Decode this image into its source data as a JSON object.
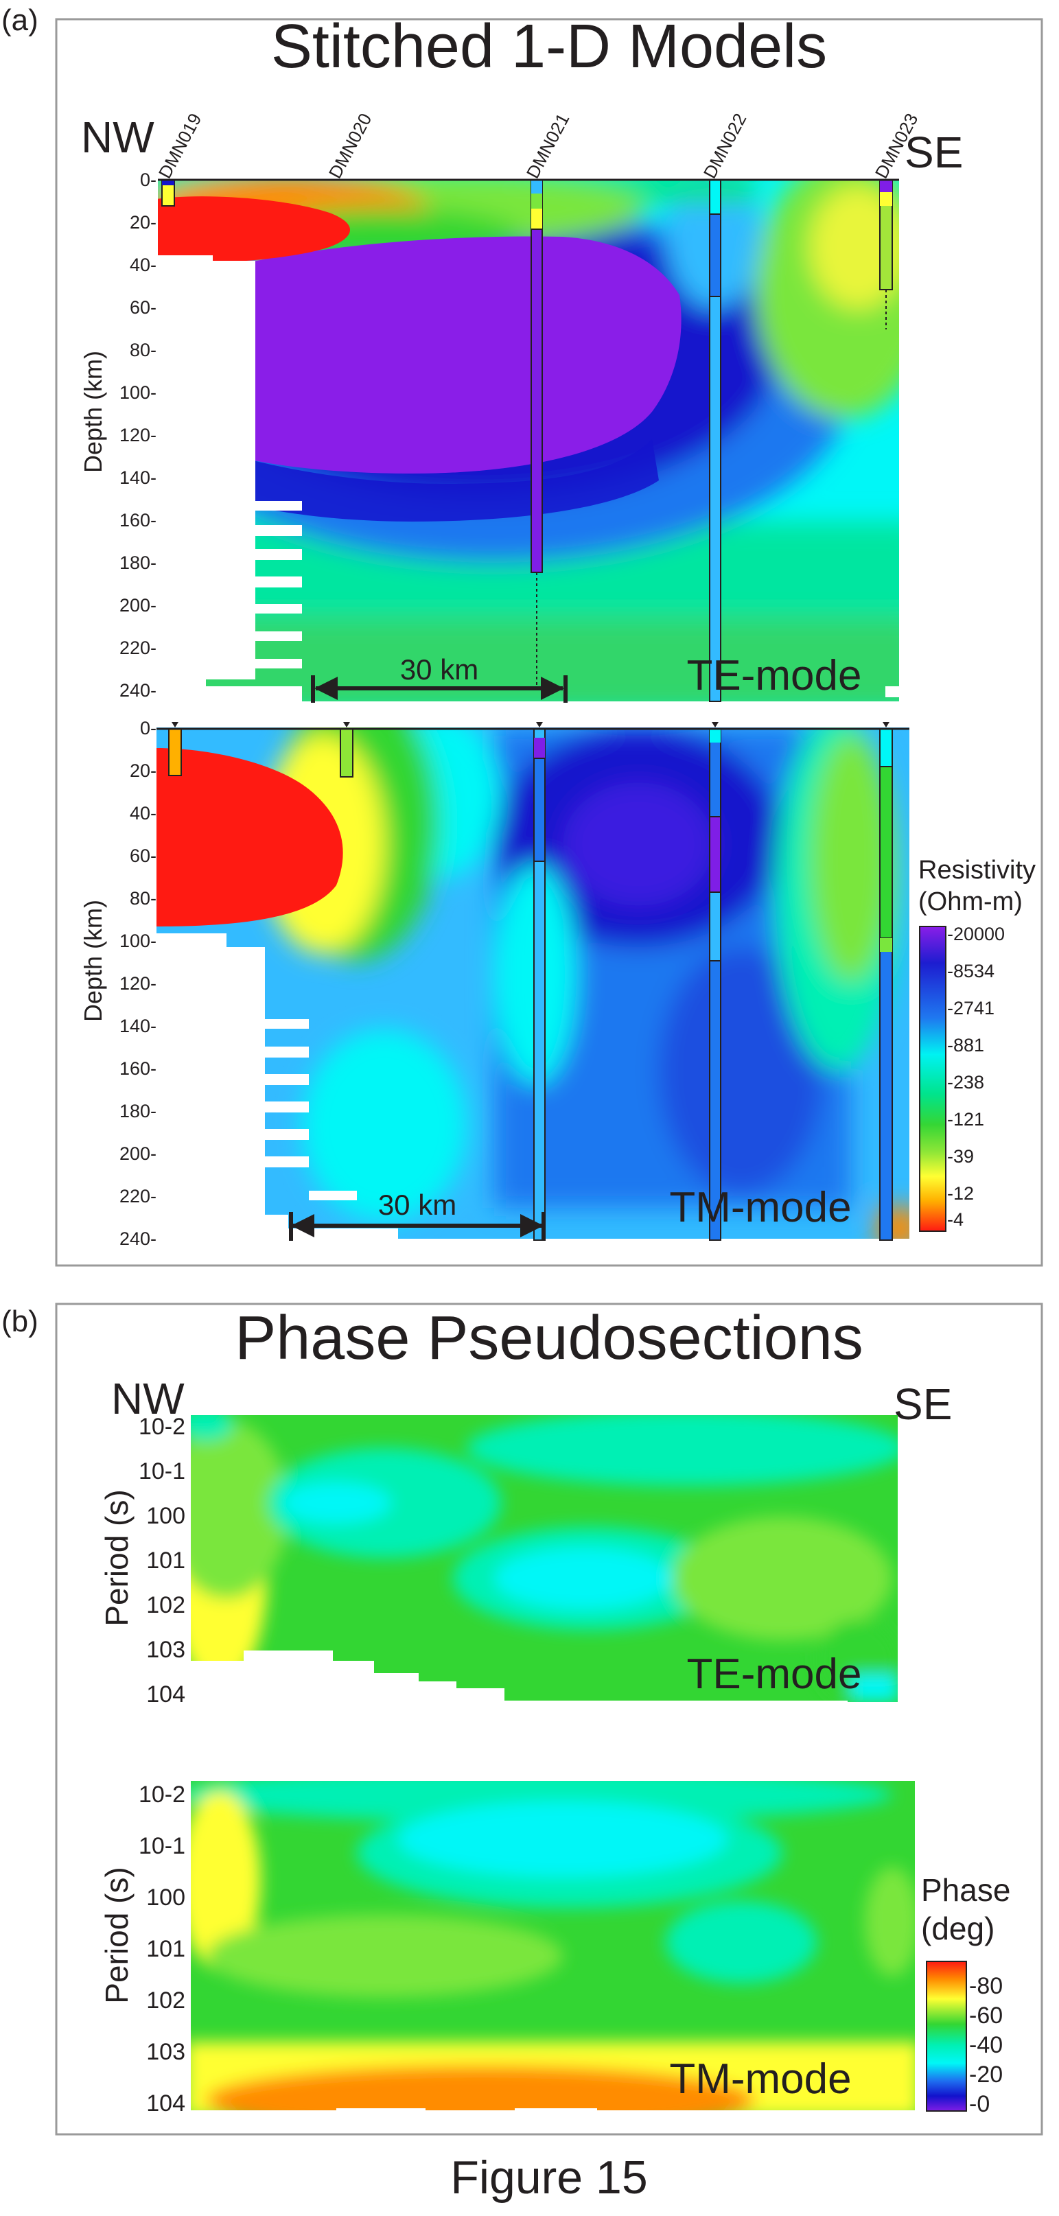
{
  "figure_caption": "Figure 15",
  "chart_data": [
    {
      "type": "heatmap",
      "panel_label": "(a)",
      "title": "Stitched 1-D Models",
      "direction_left": "NW",
      "direction_right": "SE",
      "stations": [
        "DMN019",
        "DMN020",
        "DMN021",
        "DMN022",
        "DMN023"
      ],
      "ylabel": "Depth (km)",
      "ylim": [
        0,
        240
      ],
      "y_ticks": [
        "0-",
        "20-",
        "40-",
        "60-",
        "80-",
        "100-",
        "120-",
        "140-",
        "160-",
        "180-",
        "200-",
        "220-",
        "240-"
      ],
      "scale_bar": "30 km",
      "subplots": [
        "TE-mode",
        "TM-mode"
      ],
      "colorbar": {
        "title_line1": "Resistivity",
        "title_line2": "(Ohm-m)",
        "tick_labels": [
          "20000",
          "8534",
          "2741",
          "881",
          "238",
          "121",
          "39",
          "12",
          "4"
        ]
      }
    },
    {
      "type": "heatmap",
      "panel_label": "(b)",
      "title": "Phase Pseudosections",
      "direction_left": "NW",
      "direction_right": "SE",
      "ylabel": "Period (s)",
      "y_ticks": [
        "10-2",
        "10-1",
        "100",
        "101",
        "102",
        "103",
        "104"
      ],
      "subplots": [
        "TE-mode",
        "TM-mode"
      ],
      "colorbar": {
        "title_line1": "Phase",
        "title_line2": "(deg)",
        "tick_labels": [
          "80",
          "60",
          "40",
          "20",
          "0"
        ]
      }
    }
  ],
  "colors": {
    "red": "#ff1a12",
    "orange": "#ff8c00",
    "yellow": "#ffff33",
    "green": "#33d633",
    "light_green": "#7ae63d",
    "aqua": "#00f0b4",
    "cyan": "#00f7f7",
    "sky": "#33bbff",
    "blue": "#1e6ef0",
    "dark_blue": "#1212cc",
    "purple": "#7f1ee6"
  }
}
